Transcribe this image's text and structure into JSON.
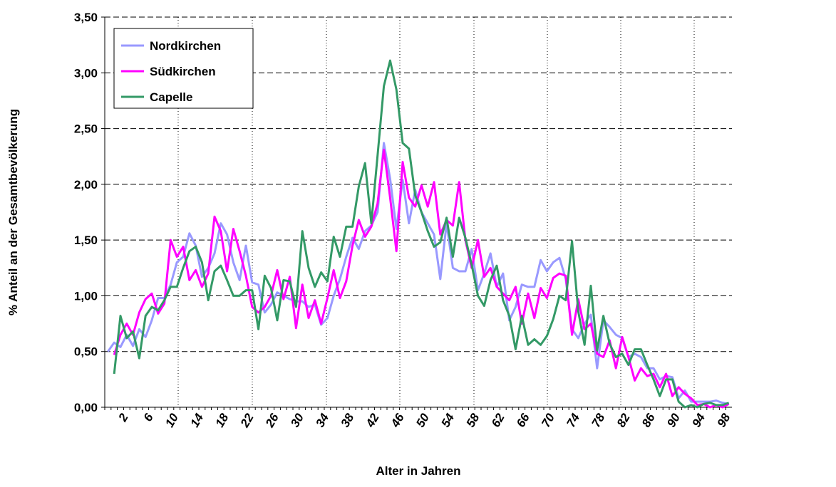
{
  "chart_data": {
    "type": "line",
    "x_label": "Alter in Jahren",
    "y_label": "% Anteil an der Gesamtbevölkerung",
    "categories": [
      null,
      null,
      "2",
      null,
      null,
      null,
      "6",
      null,
      null,
      null,
      "10",
      null,
      null,
      null,
      "14",
      null,
      null,
      null,
      "18",
      null,
      null,
      null,
      "22",
      null,
      null,
      null,
      "26",
      null,
      null,
      null,
      "30",
      null,
      null,
      null,
      "34",
      null,
      null,
      null,
      "38",
      null,
      null,
      null,
      "42",
      null,
      null,
      null,
      "46",
      null,
      null,
      null,
      "50",
      null,
      null,
      null,
      "54",
      null,
      null,
      null,
      "58",
      null,
      null,
      null,
      "62",
      null,
      null,
      null,
      "66",
      null,
      null,
      null,
      "70",
      null,
      null,
      null,
      "74",
      null,
      null,
      null,
      "78",
      null,
      null,
      null,
      "82",
      null,
      null,
      null,
      "86",
      null,
      null,
      null,
      "90",
      null,
      null,
      null,
      "94",
      null,
      null,
      null,
      "98",
      null
    ],
    "series": [
      {
        "name": "Nordkirchen",
        "color": "#9999ff",
        "values": [
          0.5,
          0.58,
          0.54,
          0.65,
          0.55,
          0.7,
          0.63,
          0.78,
          0.98,
          0.98,
          1.1,
          1.3,
          1.35,
          1.56,
          1.45,
          1.17,
          1.25,
          1.38,
          1.65,
          1.55,
          1.3,
          1.14,
          1.45,
          1.12,
          1.1,
          0.85,
          0.92,
          1.03,
          1.0,
          0.97,
          0.95,
          0.95,
          0.9,
          0.92,
          0.74,
          0.8,
          1.0,
          1.15,
          1.35,
          1.52,
          1.42,
          1.58,
          1.63,
          1.75,
          2.37,
          2.05,
          1.6,
          2.04,
          1.65,
          1.95,
          1.75,
          1.65,
          1.55,
          1.15,
          1.65,
          1.25,
          1.22,
          1.22,
          1.42,
          1.05,
          1.2,
          1.38,
          1.08,
          1.2,
          0.78,
          0.9,
          1.1,
          1.08,
          1.08,
          1.32,
          1.22,
          1.3,
          1.34,
          1.15,
          0.7,
          0.62,
          0.75,
          0.83,
          0.35,
          0.78,
          0.72,
          0.65,
          0.62,
          0.45,
          0.48,
          0.45,
          0.35,
          0.35,
          0.25,
          0.28,
          0.27,
          0.08,
          0.15,
          0.05,
          0.05,
          0.05,
          0.05,
          0.06,
          0.04,
          0.03
        ]
      },
      {
        "name": "Südkirchen",
        "color": "#ff00ff",
        "values": [
          null,
          0.47,
          0.65,
          0.75,
          0.65,
          0.85,
          0.97,
          1.02,
          0.84,
          0.93,
          1.5,
          1.35,
          1.44,
          1.14,
          1.23,
          1.08,
          1.2,
          1.71,
          1.58,
          1.22,
          1.6,
          1.4,
          1.18,
          0.9,
          0.85,
          0.9,
          1.0,
          1.23,
          0.97,
          1.17,
          0.71,
          1.1,
          0.8,
          0.96,
          0.75,
          0.98,
          1.23,
          0.98,
          1.13,
          1.45,
          1.68,
          1.53,
          1.62,
          1.83,
          2.31,
          1.88,
          1.4,
          2.2,
          1.88,
          1.8,
          1.99,
          1.8,
          2.02,
          1.55,
          1.68,
          1.63,
          2.02,
          1.5,
          1.25,
          1.5,
          1.17,
          1.25,
          1.08,
          1.02,
          0.96,
          1.08,
          0.75,
          1.02,
          0.8,
          1.07,
          0.98,
          1.16,
          1.2,
          1.18,
          0.65,
          0.97,
          0.7,
          0.75,
          0.48,
          0.45,
          0.6,
          0.35,
          0.63,
          0.45,
          0.24,
          0.35,
          0.28,
          0.3,
          0.18,
          0.3,
          0.1,
          0.18,
          0.12,
          0.08,
          0.02,
          0.03,
          0.0,
          0.02,
          0.0,
          0.03
        ]
      },
      {
        "name": "Capelle",
        "color": "#339966",
        "values": [
          null,
          0.3,
          0.82,
          0.62,
          0.68,
          0.44,
          0.82,
          0.9,
          0.87,
          0.96,
          1.08,
          1.08,
          1.25,
          1.4,
          1.44,
          1.3,
          0.96,
          1.22,
          1.27,
          1.14,
          1.0,
          1.0,
          1.05,
          1.05,
          0.7,
          1.18,
          1.07,
          0.78,
          1.14,
          1.13,
          0.9,
          1.58,
          1.25,
          1.08,
          1.21,
          1.13,
          1.53,
          1.35,
          1.62,
          1.62,
          1.98,
          2.19,
          1.65,
          2.26,
          2.88,
          3.11,
          2.85,
          2.37,
          2.32,
          1.9,
          1.75,
          1.58,
          1.44,
          1.48,
          1.7,
          1.35,
          1.7,
          1.52,
          1.28,
          1.0,
          0.91,
          1.14,
          1.27,
          0.96,
          0.82,
          0.52,
          0.82,
          0.56,
          0.61,
          0.56,
          0.64,
          0.79,
          1.0,
          0.96,
          1.49,
          0.86,
          0.56,
          1.09,
          0.51,
          0.82,
          0.57,
          0.45,
          0.48,
          0.38,
          0.52,
          0.52,
          0.38,
          0.25,
          0.1,
          0.25,
          0.25,
          0.05,
          0.0,
          0.02,
          0.0,
          0.03,
          0.04,
          0.02,
          0.02,
          0.04
        ]
      }
    ],
    "ylim": [
      0,
      3.5
    ],
    "yticks": [
      {
        "value": 0,
        "label": "0,00"
      },
      {
        "value": 0.5,
        "label": "0,50"
      },
      {
        "value": 1,
        "label": "1,00"
      },
      {
        "value": 1.5,
        "label": "1,50"
      },
      {
        "value": 2,
        "label": "2,00"
      },
      {
        "value": 2.5,
        "label": "2,50"
      },
      {
        "value": 3,
        "label": "3,00"
      },
      {
        "value": 3.5,
        "label": "3,50"
      }
    ],
    "grid": true,
    "legend": "top-left"
  }
}
